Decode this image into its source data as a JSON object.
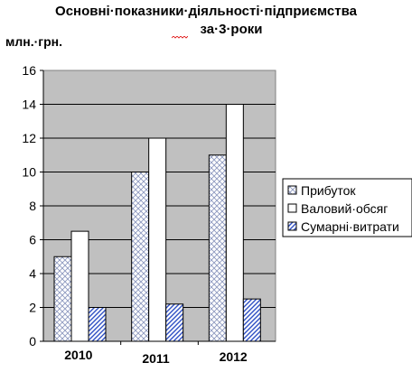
{
  "chart_data": {
    "type": "bar",
    "title_line1": "Основні·показники·діяльності·підприємства",
    "title_line2": "за·3·роки",
    "ylabel": "млн.·грн.",
    "xlabel": "",
    "categories": [
      "2010",
      "2011",
      "2012"
    ],
    "ylim": [
      0,
      16
    ],
    "yticks": [
      0,
      2,
      4,
      6,
      8,
      10,
      12,
      14,
      16
    ],
    "grid": true,
    "legend_position": "right",
    "series": [
      {
        "name": "Прибуток",
        "values": [
          5,
          10,
          11
        ],
        "pattern": "crosshatch",
        "color": "#9aa7c8"
      },
      {
        "name": "Валовий·обсяг",
        "values": [
          6.5,
          12,
          14
        ],
        "pattern": "none",
        "color": "#ffffff"
      },
      {
        "name": "Сумарні·витрати",
        "values": [
          2,
          2.2,
          2.5
        ],
        "pattern": "diagonal",
        "color": "#3355cc"
      }
    ],
    "plot_background": "#c0c0c0"
  }
}
